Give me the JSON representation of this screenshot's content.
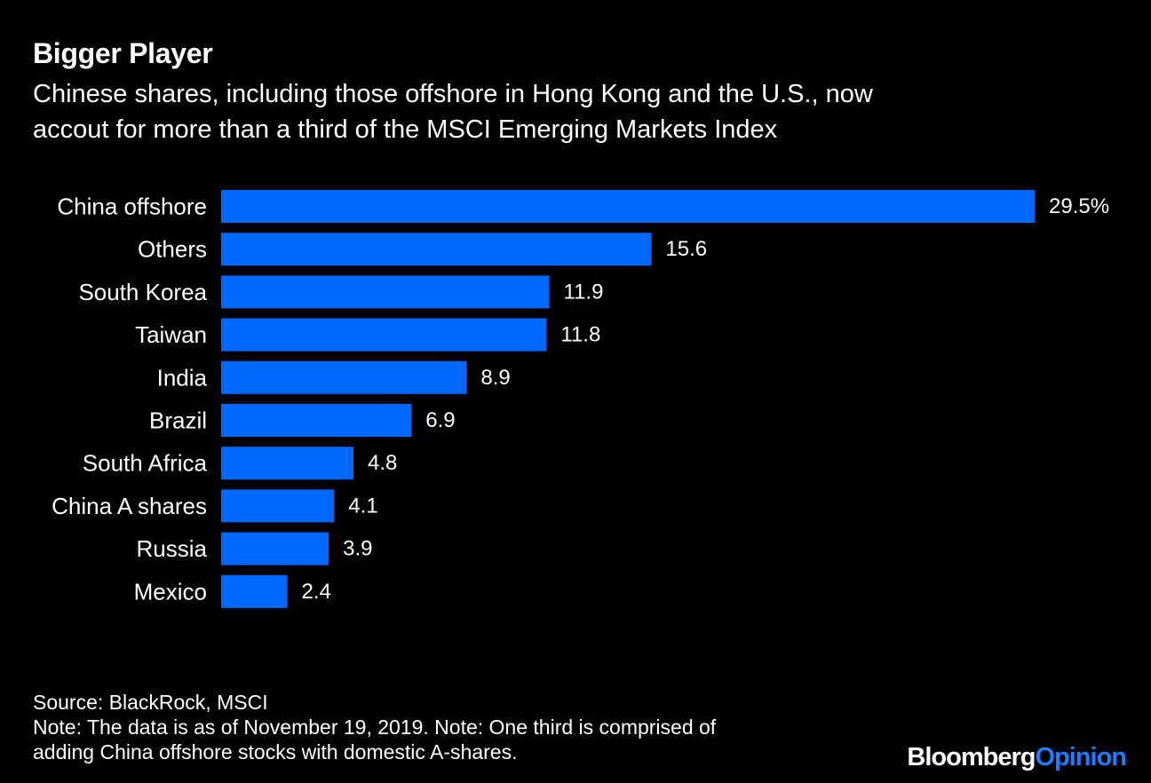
{
  "header": {
    "title": "Bigger Player",
    "subtitle_line1": "Chinese shares, including those offshore in Hong Kong and the U.S., now",
    "subtitle_line2": "accout for more than a third of the MSCI Emerging Markets Index"
  },
  "chart_data": {
    "type": "bar",
    "orientation": "horizontal",
    "title": "Bigger Player",
    "subtitle": "Chinese shares, including those offshore in Hong Kong and the U.S., now accout for more than a third of the MSCI Emerging Markets Index",
    "xlabel": "",
    "ylabel": "",
    "xlim": [
      0,
      29.5
    ],
    "grid": false,
    "categories": [
      "China offshore",
      "Others",
      "South Korea",
      "Taiwan",
      "India",
      "Brazil",
      "South Africa",
      "China A shares",
      "Russia",
      "Mexico"
    ],
    "values": [
      29.5,
      15.6,
      11.9,
      11.8,
      8.9,
      6.9,
      4.8,
      4.1,
      3.9,
      2.4
    ],
    "value_labels": [
      "29.5%",
      "15.6",
      "11.9",
      "11.8",
      "8.9",
      "6.9",
      "4.8",
      "4.1",
      "3.9",
      "2.4"
    ],
    "bar_color": "#0068ff"
  },
  "footer": {
    "source": "Source: BlackRock, MSCI",
    "note_line1": "Note: The data is as of November 19, 2019. Note: One third is comprised of",
    "note_line2": "adding China offshore stocks with domestic A-shares."
  },
  "brand": {
    "name": "Bloomberg",
    "suffix": "Opinion",
    "accent_color": "#1f7bff"
  }
}
